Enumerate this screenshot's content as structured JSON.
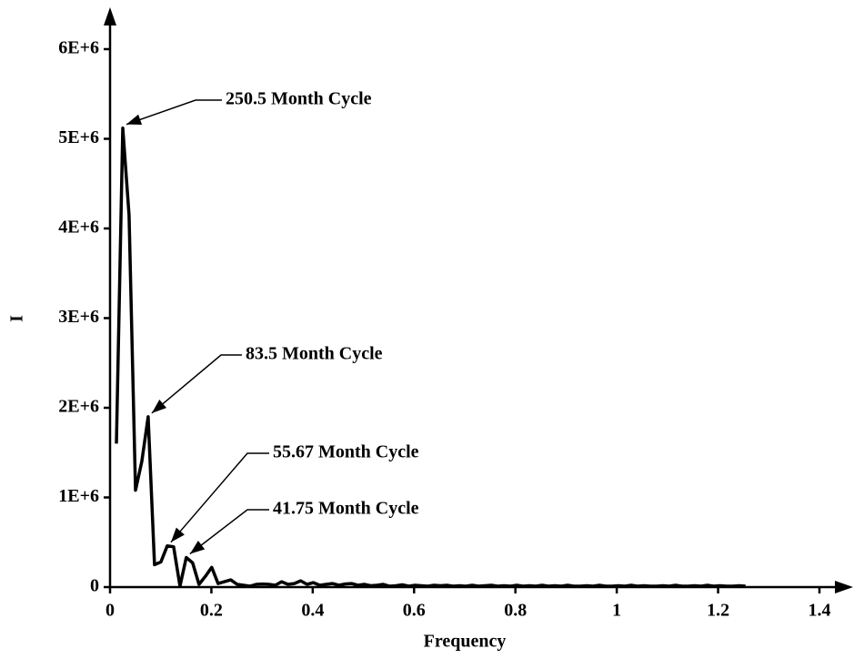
{
  "chart_data": {
    "type": "line",
    "x_label": "Frequency",
    "y_label": "I",
    "xlim": [
      0,
      1.4
    ],
    "ylim": [
      0,
      6000000
    ],
    "xticks": [
      0,
      0.2,
      0.4,
      0.6,
      0.8,
      1,
      1.2,
      1.4
    ],
    "yticks": [
      0,
      {
        "value": 1000000,
        "label": "1E+6"
      },
      {
        "value": 2000000,
        "label": "2E+6"
      },
      {
        "value": 3000000,
        "label": "3E+6"
      },
      {
        "value": 4000000,
        "label": "4E+6"
      },
      {
        "value": 5000000,
        "label": "5E+6"
      },
      {
        "value": 6000000,
        "label": "6E+6"
      }
    ],
    "grid": false,
    "x": [
      0.0125,
      0.0251,
      0.0376,
      0.0502,
      0.0627,
      0.0752,
      0.0878,
      0.1003,
      0.1129,
      0.1254,
      0.138,
      0.1505,
      0.163,
      0.1756,
      0.1881,
      0.2007,
      0.2132,
      0.2257,
      0.2383,
      0.2508,
      0.2634,
      0.2759,
      0.2884,
      0.301,
      0.3135,
      0.3261,
      0.3386,
      0.3511,
      0.3637,
      0.3762,
      0.3888,
      0.4013,
      0.4139,
      0.4264,
      0.4389,
      0.4515,
      0.464,
      0.4766,
      0.4891,
      0.5016,
      0.5142,
      0.5267,
      0.5393,
      0.5518,
      0.5643,
      0.5769,
      0.5894,
      0.602,
      0.6145,
      0.6271,
      0.6396,
      0.6521,
      0.6647,
      0.6772,
      0.6898,
      0.7023,
      0.7148,
      0.7274,
      0.7399,
      0.7525,
      0.765,
      0.7775,
      0.7901,
      0.8026,
      0.8152,
      0.8277,
      0.8402,
      0.8528,
      0.8653,
      0.8779,
      0.8904,
      0.903,
      0.9155,
      0.928,
      0.9406,
      0.9531,
      0.9657,
      0.9782,
      0.9907,
      1.0033,
      1.0158,
      1.0284,
      1.0409,
      1.0534,
      1.066,
      1.0785,
      1.0911,
      1.1036,
      1.1161,
      1.1287,
      1.1412,
      1.1538,
      1.1663,
      1.1789,
      1.1914,
      1.2039,
      1.2165,
      1.229,
      1.2416,
      1.2541
    ],
    "series": [
      {
        "color": "#000000",
        "values": [
          1600000,
          5120000,
          4150000,
          1080000,
          1400000,
          1900000,
          250000,
          280000,
          460000,
          450000,
          10000,
          330000,
          270000,
          30000,
          120000,
          220000,
          40000,
          60000,
          80000,
          30000,
          20000,
          10000,
          30000,
          35000,
          30000,
          20000,
          60000,
          30000,
          40000,
          70000,
          30000,
          50000,
          20000,
          30000,
          40000,
          20000,
          35000,
          40000,
          20000,
          30000,
          15000,
          20000,
          30000,
          10000,
          15000,
          25000,
          10000,
          20000,
          15000,
          10000,
          20000,
          15000,
          20000,
          10000,
          15000,
          10000,
          20000,
          10000,
          15000,
          20000,
          10000,
          15000,
          10000,
          20000,
          10000,
          15000,
          10000,
          20000,
          10000,
          15000,
          10000,
          20000,
          10000,
          10000,
          15000,
          10000,
          20000,
          10000,
          10000,
          15000,
          10000,
          20000,
          10000,
          15000,
          10000,
          10000,
          15000,
          10000,
          20000,
          10000,
          10000,
          15000,
          10000,
          20000,
          10000,
          15000,
          10000,
          10000,
          15000,
          10000
        ]
      }
    ],
    "annotations": [
      "250.5 Month Cycle",
      "83.5 Month Cycle",
      "55.67 Month Cycle",
      "41.75 Month Cycle"
    ]
  }
}
